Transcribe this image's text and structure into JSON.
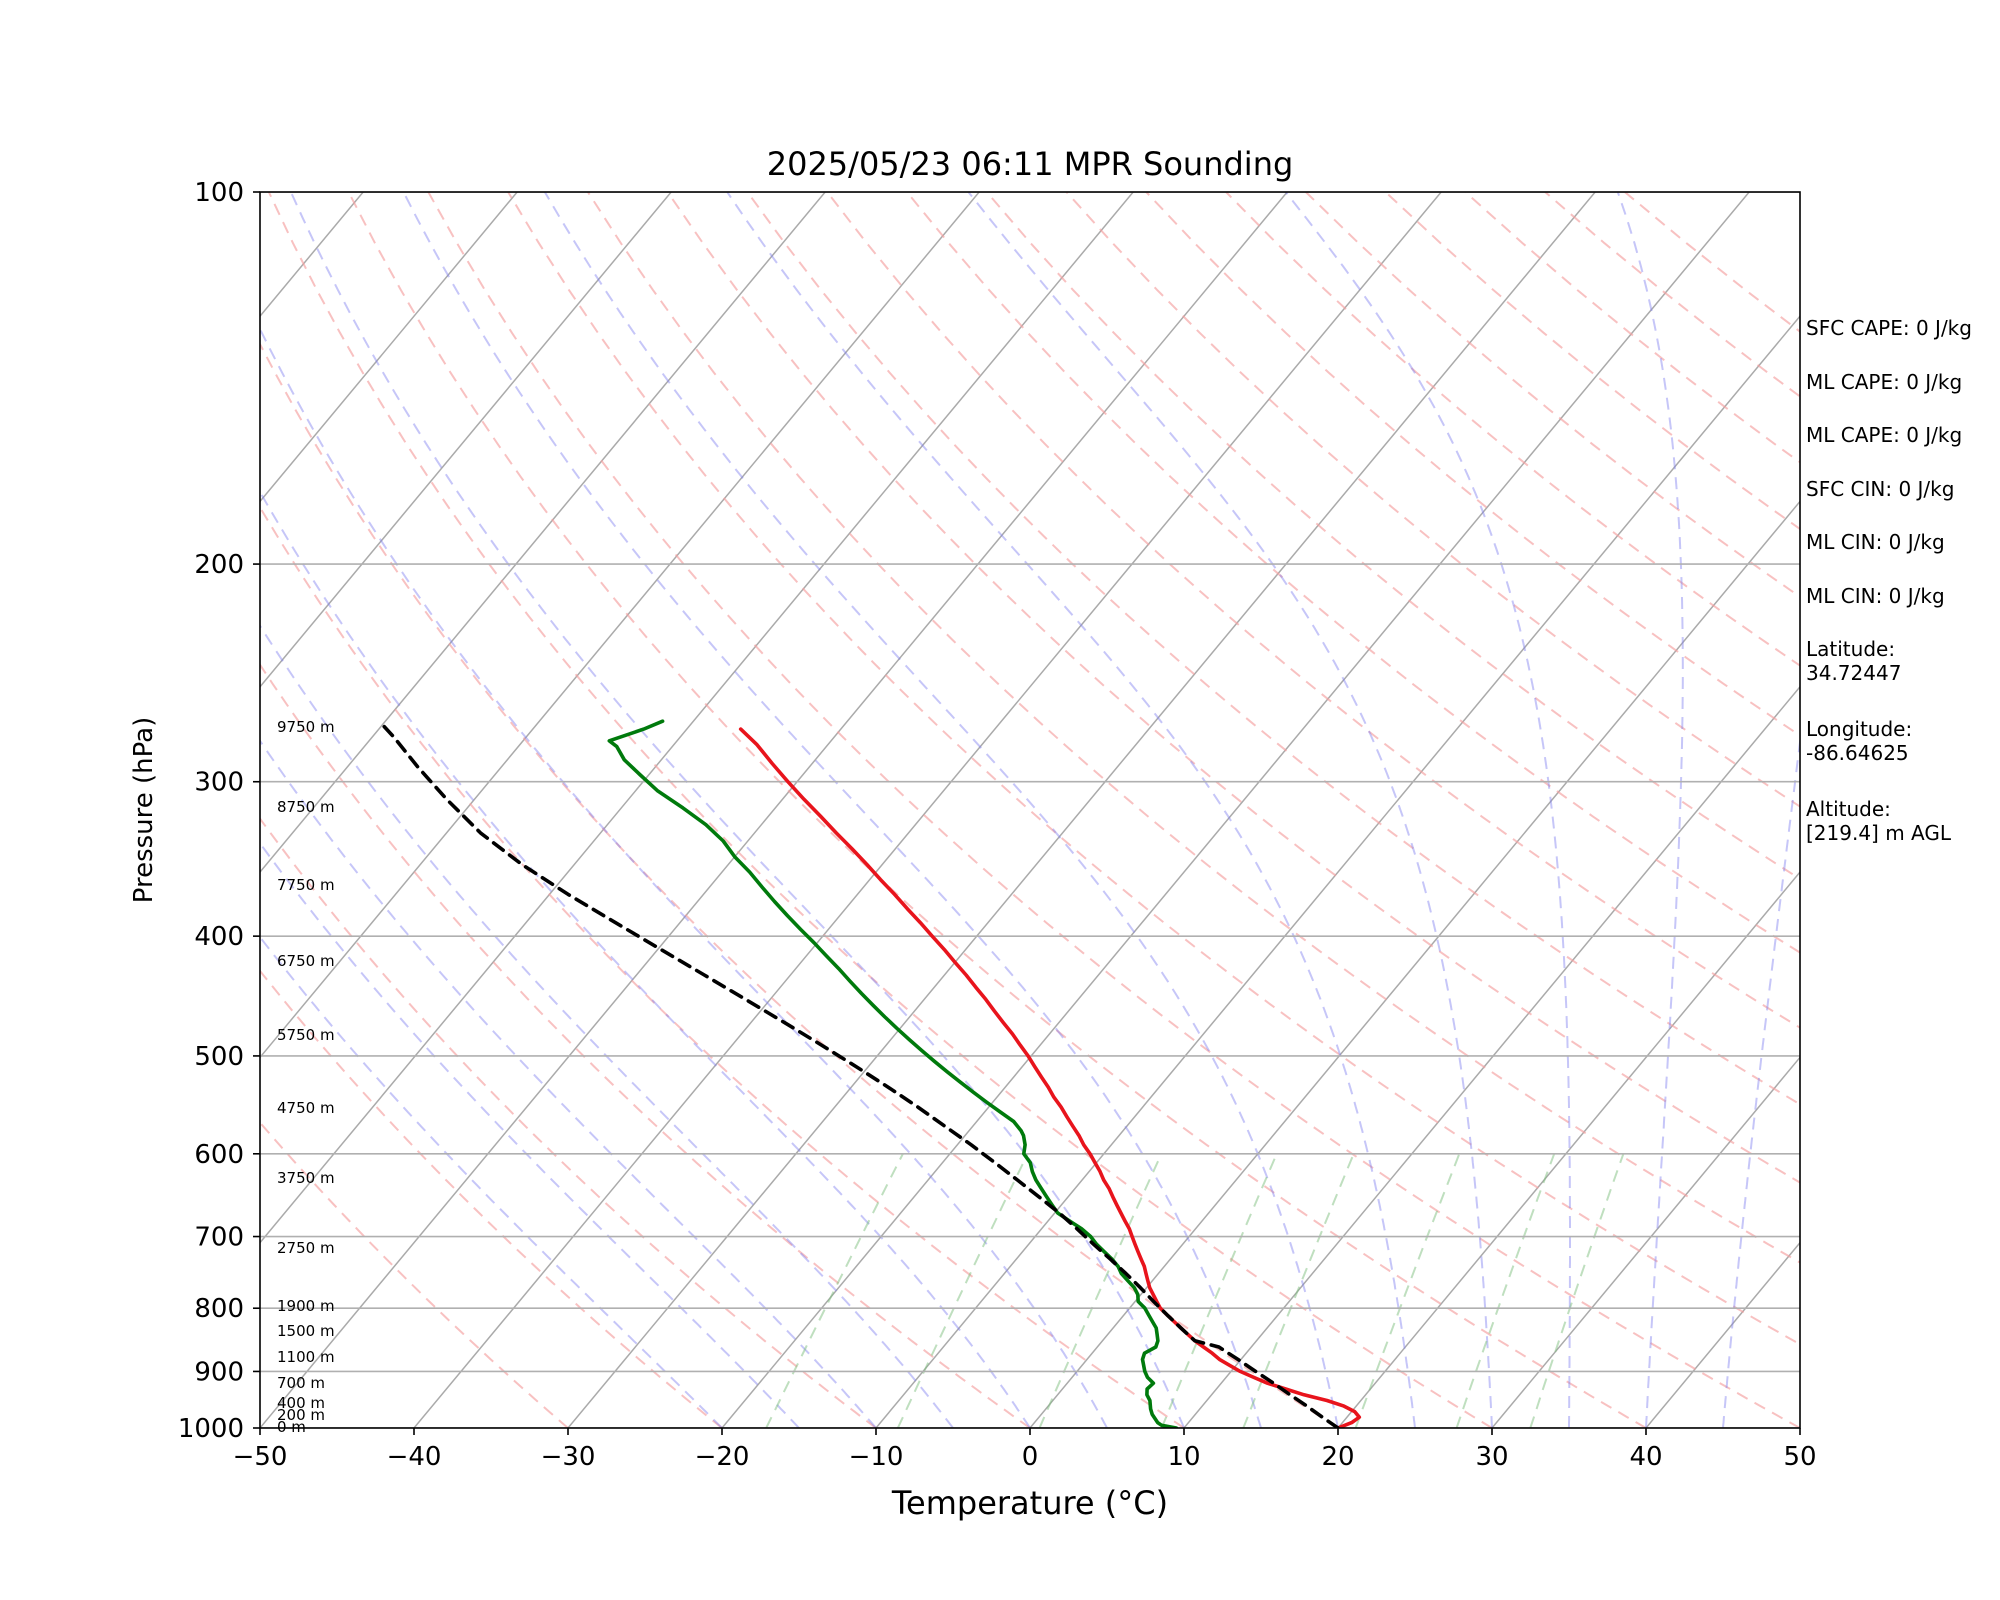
{
  "chart_data": {
    "type": "line",
    "title": "2025/05/23 06:11 MPR Sounding",
    "xlabel": "Temperature (°C)",
    "ylabel": "Pressure (hPa)",
    "xlim": [
      -50,
      50
    ],
    "ylim": [
      1000,
      100
    ],
    "y_scale": "log",
    "x_ticks": [
      "−50",
      "−40",
      "−30",
      "−20",
      "−10",
      "0",
      "10",
      "20",
      "30",
      "40",
      "50"
    ],
    "y_ticks": [
      100,
      200,
      300,
      400,
      500,
      600,
      700,
      800,
      900,
      1000
    ],
    "grid": true,
    "skew": true,
    "series": [
      {
        "color": "#e8141c",
        "style": "solid",
        "points": [
          [
            20.0,
            1000
          ],
          [
            20.6,
            990
          ],
          [
            20.8,
            980
          ],
          [
            20.2,
            970
          ],
          [
            19.2,
            960
          ],
          [
            17.8,
            950
          ],
          [
            16.0,
            940
          ],
          [
            14.5,
            930
          ],
          [
            13.0,
            920
          ],
          [
            11.8,
            910
          ],
          [
            10.6,
            900
          ],
          [
            9.6,
            890
          ],
          [
            8.6,
            880
          ],
          [
            7.8,
            870
          ],
          [
            6.9,
            860
          ],
          [
            6.0,
            850
          ],
          [
            5.2,
            840
          ],
          [
            4.4,
            830
          ],
          [
            3.6,
            820
          ],
          [
            2.8,
            810
          ],
          [
            2.0,
            800
          ],
          [
            1.4,
            790
          ],
          [
            0.8,
            780
          ],
          [
            0.2,
            770
          ],
          [
            -0.3,
            760
          ],
          [
            -0.8,
            750
          ],
          [
            -1.3,
            740
          ],
          [
            -1.9,
            730
          ],
          [
            -2.5,
            720
          ],
          [
            -3.1,
            710
          ],
          [
            -3.7,
            700
          ],
          [
            -4.3,
            690
          ],
          [
            -5.0,
            680
          ],
          [
            -5.7,
            670
          ],
          [
            -6.4,
            660
          ],
          [
            -7.1,
            650
          ],
          [
            -7.8,
            640
          ],
          [
            -8.6,
            630
          ],
          [
            -9.3,
            620
          ],
          [
            -10.1,
            610
          ],
          [
            -10.9,
            600
          ],
          [
            -11.8,
            590
          ],
          [
            -12.6,
            580
          ],
          [
            -13.5,
            570
          ],
          [
            -14.4,
            560
          ],
          [
            -15.3,
            550
          ],
          [
            -16.3,
            540
          ],
          [
            -17.2,
            530
          ],
          [
            -18.2,
            520
          ],
          [
            -19.2,
            510
          ],
          [
            -20.2,
            500
          ],
          [
            -21.3,
            490
          ],
          [
            -22.4,
            480
          ],
          [
            -23.6,
            470
          ],
          [
            -24.8,
            460
          ],
          [
            -26.0,
            450
          ],
          [
            -27.3,
            440
          ],
          [
            -28.6,
            430
          ],
          [
            -30.0,
            420
          ],
          [
            -31.4,
            410
          ],
          [
            -32.9,
            400
          ],
          [
            -34.4,
            390
          ],
          [
            -36.0,
            380
          ],
          [
            -37.6,
            370
          ],
          [
            -39.3,
            360
          ],
          [
            -41.0,
            350
          ],
          [
            -42.8,
            340
          ],
          [
            -44.7,
            330
          ],
          [
            -46.6,
            320
          ],
          [
            -48.6,
            310
          ],
          [
            -50.6,
            300
          ],
          [
            -52.6,
            290
          ],
          [
            -54.6,
            280
          ],
          [
            -56.5,
            272
          ]
        ]
      },
      {
        "color": "#007a0c",
        "style": "solid",
        "points": [
          [
            9.5,
            1000
          ],
          [
            8.4,
            995
          ],
          [
            8.0,
            990
          ],
          [
            7.2,
            975
          ],
          [
            6.8,
            965
          ],
          [
            6.3,
            950
          ],
          [
            5.8,
            940
          ],
          [
            5.5,
            930
          ],
          [
            5.6,
            920
          ],
          [
            4.9,
            910
          ],
          [
            4.4,
            900
          ],
          [
            3.6,
            880
          ],
          [
            3.4,
            870
          ],
          [
            3.8,
            860
          ],
          [
            3.6,
            850
          ],
          [
            3.2,
            840
          ],
          [
            2.8,
            830
          ],
          [
            2.2,
            820
          ],
          [
            1.6,
            810
          ],
          [
            1.0,
            800
          ],
          [
            0.2,
            790
          ],
          [
            -0.2,
            780
          ],
          [
            -0.8,
            770
          ],
          [
            -1.6,
            760
          ],
          [
            -2.4,
            750
          ],
          [
            -3.0,
            740
          ],
          [
            -3.8,
            730
          ],
          [
            -4.7,
            720
          ],
          [
            -5.6,
            710
          ],
          [
            -6.4,
            700
          ],
          [
            -7.4,
            690
          ],
          [
            -8.6,
            680
          ],
          [
            -9.8,
            670
          ],
          [
            -10.6,
            660
          ],
          [
            -11.4,
            650
          ],
          [
            -12.2,
            640
          ],
          [
            -13.0,
            630
          ],
          [
            -13.7,
            620
          ],
          [
            -14.3,
            610
          ],
          [
            -15.2,
            600
          ],
          [
            -15.6,
            590
          ],
          [
            -16.2,
            580
          ],
          [
            -16.6,
            575
          ],
          [
            -17.6,
            565
          ],
          [
            -19.0,
            555
          ],
          [
            -20.4,
            545
          ],
          [
            -21.8,
            535
          ],
          [
            -23.2,
            525
          ],
          [
            -24.6,
            515
          ],
          [
            -26.0,
            505
          ],
          [
            -27.4,
            495
          ],
          [
            -28.8,
            485
          ],
          [
            -30.2,
            475
          ],
          [
            -31.6,
            465
          ],
          [
            -33.0,
            455
          ],
          [
            -34.4,
            445
          ],
          [
            -35.8,
            435
          ],
          [
            -37.2,
            425
          ],
          [
            -38.7,
            415
          ],
          [
            -40.2,
            405
          ],
          [
            -41.8,
            395
          ],
          [
            -43.4,
            385
          ],
          [
            -45.0,
            375
          ],
          [
            -46.6,
            365
          ],
          [
            -48.2,
            355
          ],
          [
            -50.0,
            345
          ],
          [
            -51.6,
            335
          ],
          [
            -53.6,
            325
          ],
          [
            -56.0,
            315
          ],
          [
            -58.6,
            305
          ],
          [
            -60.6,
            296
          ],
          [
            -62.4,
            288
          ],
          [
            -63.6,
            281
          ],
          [
            -64.4,
            278
          ],
          [
            -62.8,
            272
          ],
          [
            -62.0,
            268
          ]
        ]
      },
      {
        "color": "#000000",
        "style": "dashed",
        "points": [
          [
            20.0,
            1000
          ],
          [
            18.4,
            980
          ],
          [
            16.8,
            960
          ],
          [
            15.1,
            940
          ],
          [
            13.4,
            920
          ],
          [
            11.6,
            900
          ],
          [
            9.8,
            880
          ],
          [
            7.9,
            860
          ],
          [
            6.0,
            850
          ],
          [
            4.4,
            830
          ],
          [
            2.8,
            810
          ],
          [
            1.2,
            790
          ],
          [
            -0.4,
            770
          ],
          [
            -2.1,
            750
          ],
          [
            -3.9,
            730
          ],
          [
            -5.8,
            710
          ],
          [
            -7.7,
            690
          ],
          [
            -9.7,
            670
          ],
          [
            -11.9,
            650
          ],
          [
            -14.2,
            630
          ],
          [
            -16.6,
            610
          ],
          [
            -19.1,
            590
          ],
          [
            -21.8,
            570
          ],
          [
            -24.6,
            550
          ],
          [
            -27.6,
            530
          ],
          [
            -30.8,
            510
          ],
          [
            -34.2,
            490
          ],
          [
            -37.8,
            470
          ],
          [
            -41.6,
            450
          ],
          [
            -45.6,
            430
          ],
          [
            -49.8,
            410
          ],
          [
            -54.2,
            390
          ],
          [
            -58.8,
            370
          ],
          [
            -63.4,
            350
          ],
          [
            -67.8,
            330
          ],
          [
            -71.8,
            310
          ],
          [
            -75.4,
            292
          ],
          [
            -78.6,
            276
          ],
          [
            -80.4,
            268
          ]
        ]
      }
    ],
    "height_labels": [
      "9750 m",
      "8750 m",
      "7750 m",
      "6750 m",
      "5750 m",
      "4750 m",
      "3750 m",
      "2750 m",
      "1900 m",
      "1500 m",
      "1100 m",
      "700 m",
      "400 m",
      "200 m",
      "0 m"
    ]
  },
  "stats": {
    "sfc_cape": "SFC CAPE: 0 J/kg",
    "ml_cape_1": "ML CAPE: 0 J/kg",
    "ml_cape_2": "ML CAPE: 0 J/kg",
    "sfc_cin": "SFC CIN: 0 J/kg",
    "ml_cin_1": "ML CIN: 0 J/kg",
    "ml_cin_2": "ML CIN: 0 J/kg",
    "latitude_label": "Latitude:",
    "latitude_value": "34.72447",
    "longitude_label": "Longitude:",
    "longitude_value": "-86.64625",
    "altitude_label": "Altitude:",
    "altitude_value": "[219.4] m AGL"
  }
}
